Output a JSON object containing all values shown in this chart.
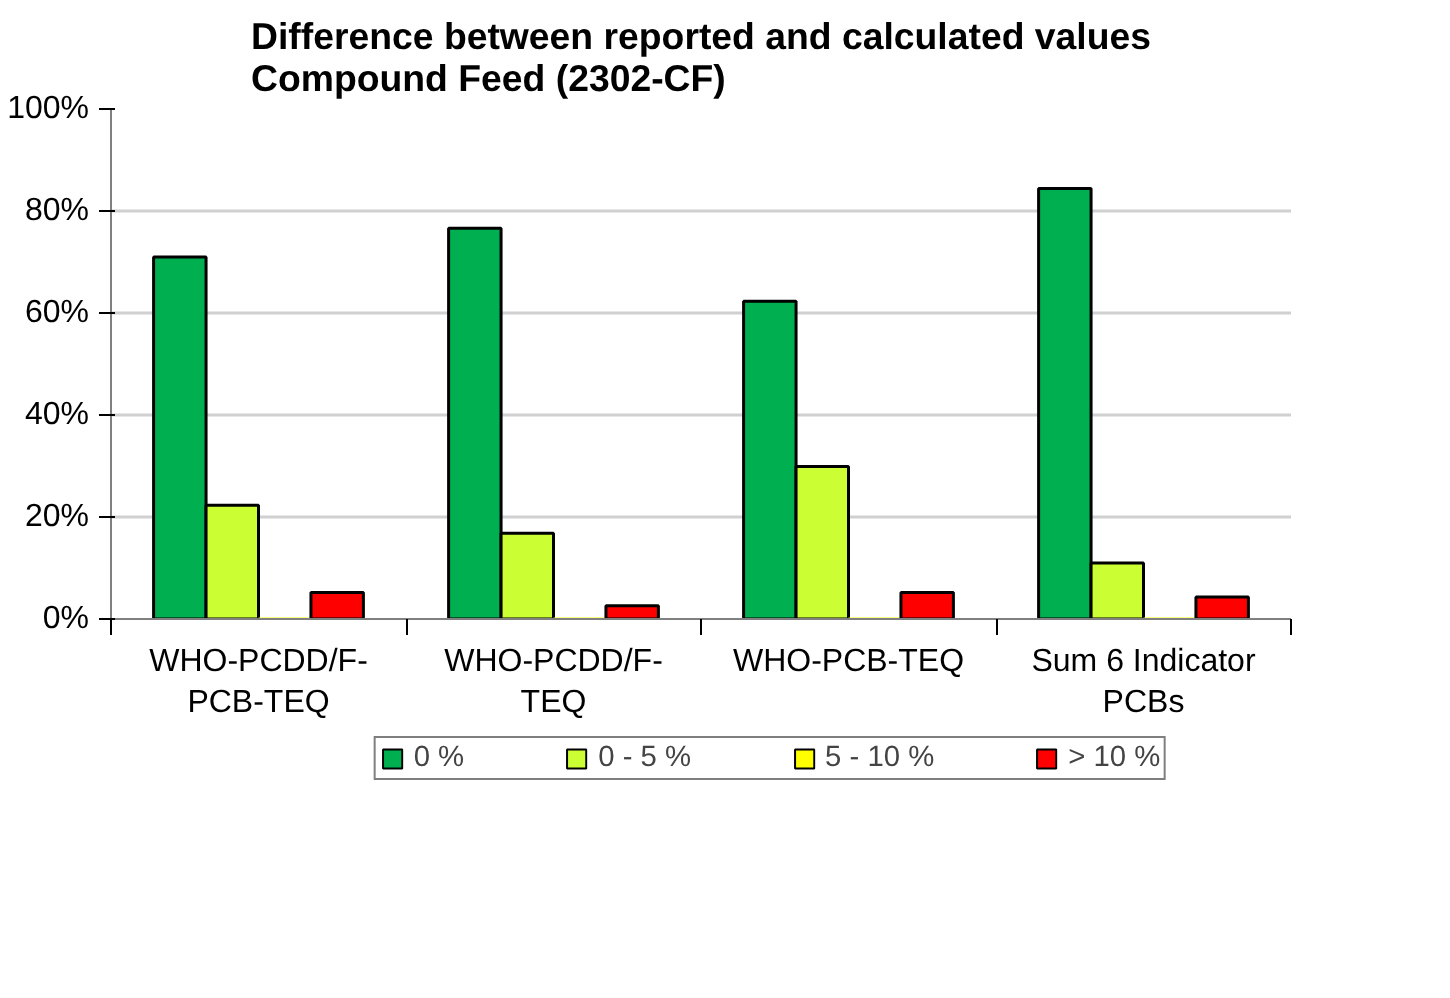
{
  "chart_data": {
    "type": "bar",
    "title": "Difference between reported and calculated values\nCompound Feed (2302-CF)",
    "categories": [
      "WHO-PCDD/F-\nPCB-TEQ",
      "WHO-PCDD/F-\nTEQ",
      "WHO-PCB-TEQ",
      "Sum 6 Indicator\nPCBs"
    ],
    "series": [
      {
        "name": "0 %",
        "color": "#00b050",
        "values": [
          71.0,
          76.6,
          62.3,
          84.4
        ]
      },
      {
        "name": "0 - 5 %",
        "color": "#ccff33",
        "values": [
          22.3,
          16.8,
          29.9,
          11.0
        ]
      },
      {
        "name": "5 - 10 %",
        "color": "#ffff00",
        "values": [
          0,
          0,
          0,
          0
        ]
      },
      {
        "name": "> 10 %",
        "color": "#ff0000",
        "values": [
          5.2,
          2.6,
          5.2,
          4.3
        ]
      }
    ],
    "ylim": [
      0,
      100
    ],
    "yticks": [
      {
        "value": 0,
        "label": "0%"
      },
      {
        "value": 20,
        "label": "20%"
      },
      {
        "value": 40,
        "label": "40%"
      },
      {
        "value": 60,
        "label": "60%"
      },
      {
        "value": 80,
        "label": "80%"
      },
      {
        "value": 100,
        "label": "100%"
      }
    ],
    "grid": "y",
    "legend": "bottom"
  }
}
